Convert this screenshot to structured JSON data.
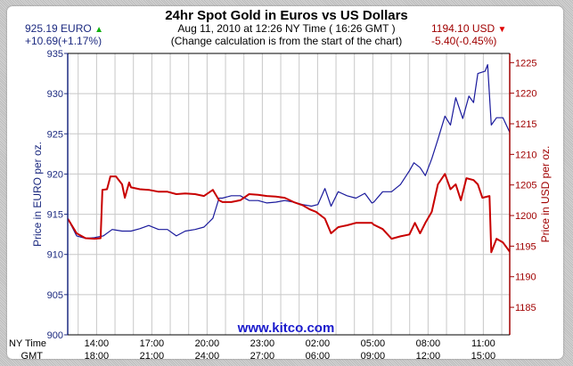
{
  "header": {
    "title": "24hr Spot Gold in Euros vs US Dollars",
    "subtitle": "Aug 11, 2010 at 12:26 NY Time ( 16:26 GMT )",
    "note": "(Change calculation is from the start of the chart)",
    "euro_price": "925.19 EURO",
    "euro_change": "+10.69(+1.17%)",
    "euro_direction": "up",
    "usd_price": "1194.10 USD",
    "usd_change": "-5.40(-0.45%)",
    "usd_direction": "down"
  },
  "watermark": "www.kitco.com",
  "colors": {
    "euro": "#1a1a9c",
    "usd": "#c80000",
    "euro_axis": "#1c2a80",
    "usd_axis": "#a00000",
    "up": "#10b010",
    "down": "#e00000"
  },
  "chart_data": {
    "type": "line",
    "title": "24hr Spot Gold in Euros vs US Dollars",
    "ylabel_left": "Price in EURO per oz.",
    "ylabel_right": "Price in USD per oz.",
    "ylim_left": [
      900,
      935
    ],
    "yticks_left": [
      900,
      905,
      910,
      915,
      920,
      925,
      930,
      935
    ],
    "ylim_right": [
      1180.5,
      1226.5
    ],
    "yticks_right": [
      1185,
      1190,
      1195,
      1200,
      1205,
      1210,
      1215,
      1220,
      1225
    ],
    "x_row_labels": [
      "NY Time",
      "GMT"
    ],
    "x_range": [
      "12:26",
      "12:26"
    ],
    "xticks_ny": [
      "14:00",
      "17:00",
      "20:00",
      "23:00",
      "02:00",
      "05:00",
      "08:00",
      "11:00"
    ],
    "xticks_gmt": [
      "18:00",
      "21:00",
      "24:00",
      "27:00",
      "06:00",
      "09:00",
      "12:00",
      "15:00"
    ],
    "grid": true,
    "series": [
      {
        "name": "EURO",
        "axis": "left",
        "x": [
          "12:26",
          "12:55",
          "13:24",
          "13:53",
          "14:22",
          "14:51",
          "15:23",
          "15:52",
          "16:21",
          "16:50",
          "17:22",
          "17:51",
          "18:20",
          "18:49",
          "19:21",
          "19:50",
          "20:19",
          "20:39",
          "20:50",
          "21:19",
          "21:48",
          "22:17",
          "22:46",
          "23:15",
          "23:44",
          "00:13",
          "00:42",
          "01:11",
          "01:40",
          "02:01",
          "02:24",
          "02:44",
          "03:07",
          "03:36",
          "04:05",
          "04:34",
          "04:57",
          "05:03",
          "05:32",
          "06:01",
          "06:30",
          "06:59",
          "07:14",
          "07:34",
          "07:51",
          "08:12",
          "08:32",
          "08:55",
          "09:13",
          "09:30",
          "09:53",
          "10:13",
          "10:28",
          "10:42",
          "11:06",
          "11:14",
          "11:26",
          "11:43",
          "12:04",
          "12:26"
        ],
        "y": [
          914.5,
          912.3,
          912.0,
          912.1,
          912.3,
          913.1,
          912.9,
          912.9,
          913.2,
          913.6,
          913.1,
          913.1,
          912.3,
          912.9,
          913.1,
          913.4,
          914.5,
          917.0,
          917.0,
          917.3,
          917.3,
          916.7,
          916.7,
          916.4,
          916.5,
          916.7,
          916.5,
          916.2,
          916.0,
          916.2,
          918.2,
          916.0,
          917.8,
          917.3,
          917.0,
          917.6,
          916.4,
          916.5,
          917.8,
          917.8,
          918.7,
          920.4,
          921.4,
          920.8,
          919.8,
          921.9,
          924.3,
          927.2,
          926.1,
          929.5,
          926.9,
          929.7,
          928.9,
          932.5,
          932.8,
          933.6,
          926.1,
          927.0,
          927.0,
          925.19
        ]
      },
      {
        "name": "USD",
        "axis": "right",
        "x": [
          "12:26",
          "12:55",
          "13:24",
          "13:53",
          "14:13",
          "14:19",
          "14:34",
          "14:45",
          "15:03",
          "15:23",
          "15:32",
          "15:46",
          "15:52",
          "16:21",
          "16:50",
          "17:22",
          "17:51",
          "18:20",
          "18:49",
          "19:21",
          "19:50",
          "20:19",
          "20:39",
          "20:50",
          "21:19",
          "21:48",
          "22:17",
          "22:46",
          "23:15",
          "23:44",
          "00:13",
          "00:42",
          "01:11",
          "01:35",
          "01:55",
          "02:24",
          "02:44",
          "03:07",
          "03:36",
          "04:05",
          "04:34",
          "04:57",
          "05:03",
          "05:32",
          "06:01",
          "06:30",
          "06:59",
          "07:17",
          "07:34",
          "07:51",
          "08:12",
          "08:32",
          "08:55",
          "09:13",
          "09:30",
          "09:47",
          "10:05",
          "10:28",
          "10:42",
          "10:57",
          "11:20",
          "11:26",
          "11:43",
          "12:04",
          "12:26"
        ],
        "y": [
          1199.5,
          1197.1,
          1196.3,
          1196.2,
          1196.3,
          1204.2,
          1204.3,
          1206.4,
          1206.4,
          1205.1,
          1202.9,
          1205.4,
          1204.6,
          1204.3,
          1204.2,
          1203.9,
          1203.9,
          1203.5,
          1203.6,
          1203.5,
          1203.2,
          1204.2,
          1202.5,
          1202.2,
          1202.2,
          1202.5,
          1203.5,
          1203.4,
          1203.2,
          1203.1,
          1202.9,
          1202.2,
          1201.7,
          1201.0,
          1200.6,
          1199.5,
          1197.1,
          1198.1,
          1198.4,
          1198.8,
          1198.8,
          1198.8,
          1198.5,
          1197.8,
          1196.2,
          1196.6,
          1196.9,
          1198.8,
          1197.1,
          1198.8,
          1200.6,
          1205.1,
          1206.8,
          1204.3,
          1205.1,
          1202.5,
          1206.1,
          1205.8,
          1205.1,
          1202.9,
          1203.2,
          1194.0,
          1196.2,
          1195.6,
          1194.1
        ]
      }
    ]
  }
}
